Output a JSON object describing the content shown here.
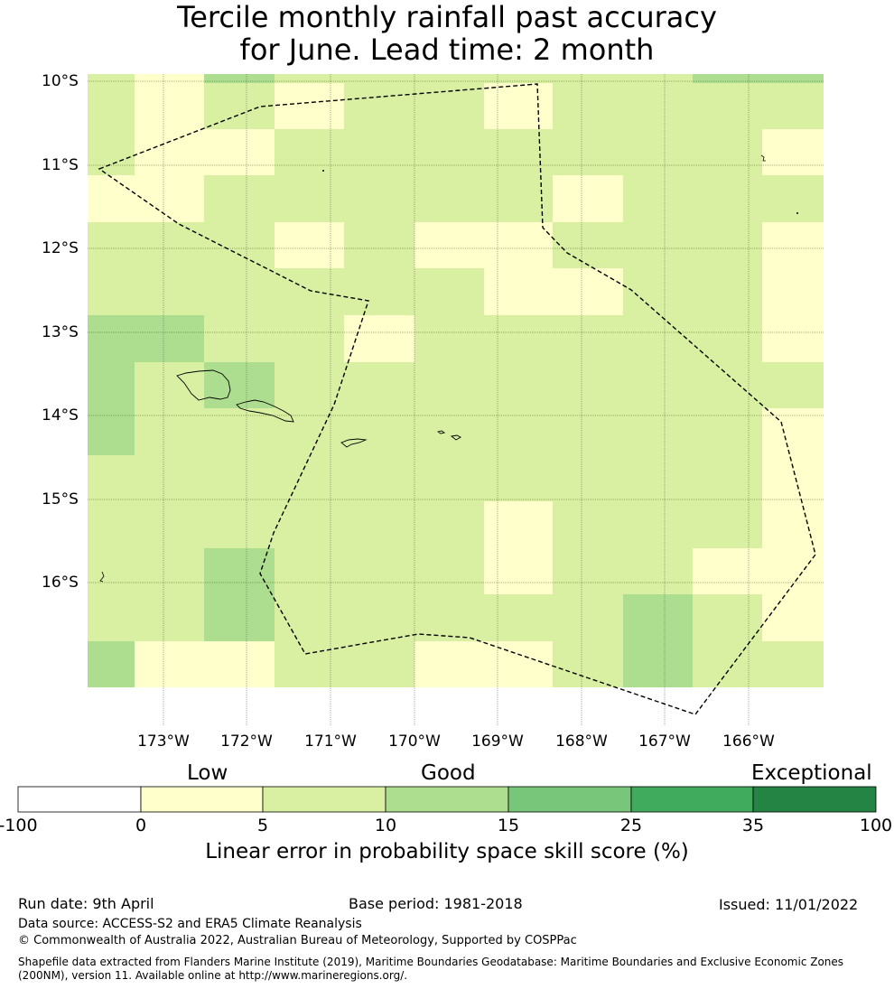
{
  "title_line1": "Tercile monthly rainfall past accuracy",
  "title_line2": "for June. Lead time: 2 month",
  "map": {
    "lat_labels": [
      "10°S",
      "11°S",
      "12°S",
      "13°S",
      "14°S",
      "15°S",
      "16°S"
    ],
    "lon_labels": [
      "173°W",
      "172°W",
      "171°W",
      "170°W",
      "169°W",
      "168°W",
      "167°W",
      "166°W"
    ],
    "cell_colors": {
      "low": "#ffffcc",
      "good_low": "#d9f0a3",
      "good_high": "#addd8e"
    },
    "grid": [
      [
        "good_low",
        "low",
        "good_high",
        "good_low",
        "good_low",
        "good_low",
        "good_low",
        "good_low",
        "good_low",
        "good_high",
        "good_high"
      ],
      [
        "good_low",
        "low",
        "good_low",
        "low",
        "good_low",
        "good_low",
        "low",
        "good_low",
        "good_low",
        "good_low",
        "good_low"
      ],
      [
        "good_low",
        "low",
        "low",
        "good_low",
        "good_low",
        "good_low",
        "good_low",
        "good_low",
        "good_low",
        "good_low",
        "low"
      ],
      [
        "low",
        "low",
        "good_low",
        "good_low",
        "good_low",
        "good_low",
        "good_low",
        "low",
        "good_low",
        "good_low",
        "good_low"
      ],
      [
        "good_low",
        "good_low",
        "good_low",
        "low",
        "good_low",
        "low",
        "low",
        "good_low",
        "good_low",
        "good_low",
        "low"
      ],
      [
        "good_low",
        "good_low",
        "good_low",
        "good_low",
        "good_low",
        "good_low",
        "low",
        "low",
        "good_low",
        "good_low",
        "low"
      ],
      [
        "good_high",
        "good_high",
        "good_low",
        "good_low",
        "low",
        "good_low",
        "good_low",
        "good_low",
        "good_low",
        "good_low",
        "low"
      ],
      [
        "good_high",
        "good_low",
        "good_high",
        "good_low",
        "good_low",
        "good_low",
        "good_low",
        "good_low",
        "good_low",
        "good_low",
        "good_low"
      ],
      [
        "good_high",
        "good_low",
        "good_low",
        "good_low",
        "good_low",
        "good_low",
        "good_low",
        "good_low",
        "good_low",
        "good_low",
        "low"
      ],
      [
        "good_low",
        "good_low",
        "good_low",
        "good_low",
        "good_low",
        "good_low",
        "good_low",
        "good_low",
        "good_low",
        "good_low",
        "low"
      ],
      [
        "good_low",
        "good_low",
        "good_low",
        "good_low",
        "good_low",
        "good_low",
        "low",
        "good_low",
        "good_low",
        "good_low",
        "low"
      ],
      [
        "good_low",
        "good_low",
        "good_high",
        "good_low",
        "good_low",
        "good_low",
        "low",
        "good_low",
        "good_low",
        "low",
        "low"
      ],
      [
        "good_low",
        "good_low",
        "good_high",
        "good_low",
        "good_low",
        "good_low",
        "good_low",
        "good_low",
        "good_high",
        "good_low",
        "low"
      ],
      [
        "good_high",
        "low",
        "low",
        "good_low",
        "good_low",
        "low",
        "low",
        "good_low",
        "good_high",
        "good_low",
        "good_low"
      ]
    ]
  },
  "colorbar": {
    "categories": [
      "Low",
      "Good",
      "Exceptional"
    ],
    "ticks": [
      "-100",
      "0",
      "5",
      "10",
      "15",
      "25",
      "35",
      "100"
    ],
    "colors": [
      "#ffffff",
      "#ffffcc",
      "#d9f0a3",
      "#addd8e",
      "#78c679",
      "#41ab5d",
      "#238443"
    ],
    "label": "Linear error in probability space skill score (%)"
  },
  "footer": {
    "run_date": "Run date: 9th April",
    "base_period": "Base period: 1981-2018",
    "issued": "Issued: 11/01/2022",
    "data_source": "Data source: ACCESS-S2 and ERA5 Climate Reanalysis",
    "copyright": "© Commonwealth of Australia 2022, Australian Bureau of Meteorology, Supported by COSPPac",
    "shapefile_line1": "Shapefile data extracted from Flanders Marine Institute (2019), Maritime Boundaries Geodatabase: Maritime Boundaries and Exclusive Economic Zones",
    "shapefile_line2": "(200NM), version 11. Available online at http://www.marineregions.org/."
  }
}
